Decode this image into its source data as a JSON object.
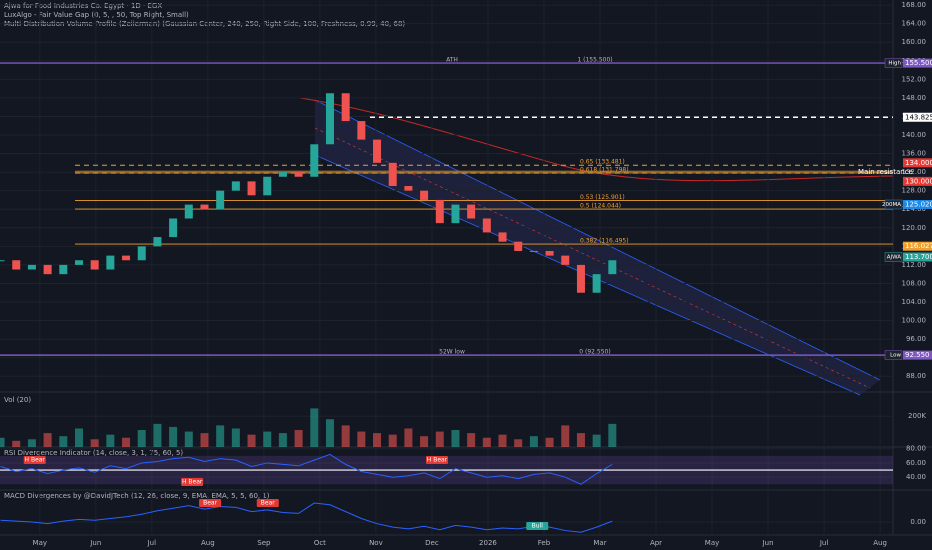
{
  "chart_data": [
    {
      "type": "candlestick",
      "title": "Ajwa for Food Industries Co. Egypt · 1D · EGX",
      "subtitles": [
        "LuxAlgo - Fair Value Gap (0, 5, , 50, Top Right, Small)",
        "Multi-Distribution Volume Profile (Zeiierman) (Gaussian Center, 240, 250, Right Side, 100, Freshness, 0.99, 40, 68)"
      ],
      "x": [
        0.3,
        0.58,
        0.86,
        1.14,
        1.42,
        1.7,
        1.98,
        2.26,
        2.54,
        2.82,
        3.1,
        3.38,
        3.66,
        3.94,
        4.22,
        4.5,
        4.78,
        5.06,
        5.34,
        5.62,
        5.9,
        6.18,
        6.46,
        6.74,
        7.02,
        7.3,
        7.58,
        7.86,
        8.14,
        8.42,
        8.7,
        8.98,
        9.26,
        9.54,
        9.82,
        10.1,
        10.38,
        10.66,
        10.94,
        11.22
      ],
      "close": [
        113,
        111,
        112,
        110,
        112,
        113,
        111,
        114,
        113,
        116,
        118,
        122,
        125,
        124,
        128,
        130,
        127,
        131,
        132,
        131,
        138,
        149,
        143,
        139,
        134,
        129,
        128,
        126,
        121,
        125,
        122,
        119,
        117,
        115,
        115,
        114,
        112,
        106,
        110,
        113
      ],
      "color_up": "#26a69a",
      "color_down": "#ef5350",
      "xlim": [
        0.29,
        16.23
      ],
      "xticks": [
        {
          "value": 1,
          "label": "May"
        },
        {
          "value": 2,
          "label": "Jun"
        },
        {
          "value": 3,
          "label": "Jul"
        },
        {
          "value": 4,
          "label": "Aug"
        },
        {
          "value": 5,
          "label": "Sep"
        },
        {
          "value": 6,
          "label": "Oct"
        },
        {
          "value": 7,
          "label": "Nov"
        },
        {
          "value": 8,
          "label": "Dec"
        },
        {
          "value": 9,
          "label": "2026"
        },
        {
          "value": 10,
          "label": "Feb"
        },
        {
          "value": 11,
          "label": "Mar"
        },
        {
          "value": 12,
          "label": "Apr"
        },
        {
          "value": 13,
          "label": "May"
        },
        {
          "value": 14,
          "label": "Jun"
        },
        {
          "value": 15,
          "label": "Jul"
        },
        {
          "value": 16,
          "label": "Aug"
        }
      ],
      "ylim": [
        84.6,
        169.1
      ],
      "yticks": [
        {
          "value": 88,
          "label": "88.00"
        },
        {
          "value": 92,
          "label": "92.00"
        },
        {
          "value": 96,
          "label": "96.00"
        },
        {
          "value": 100,
          "label": "100.00"
        },
        {
          "value": 104,
          "label": "104.00"
        },
        {
          "value": 108,
          "label": "108.00"
        },
        {
          "value": 112,
          "label": "112.00"
        },
        {
          "value": 116,
          "label": "116.00"
        },
        {
          "value": 120,
          "label": "120.00"
        },
        {
          "value": 124,
          "label": "124.00"
        },
        {
          "value": 128,
          "label": "128.00"
        },
        {
          "value": 132,
          "label": "132.00"
        },
        {
          "value": 136,
          "label": "136.00"
        },
        {
          "value": 140,
          "label": "140.00"
        },
        {
          "value": 144,
          "label": "144.00"
        },
        {
          "value": 148,
          "label": "148.00"
        },
        {
          "value": 152,
          "label": "152.00"
        },
        {
          "value": 156,
          "label": "156.00"
        },
        {
          "value": 160,
          "label": "160.00"
        },
        {
          "value": 164,
          "label": "164.00"
        },
        {
          "value": 168,
          "label": "168.00"
        }
      ],
      "levels": [
        {
          "value": 155.5,
          "color": "#7e57c2",
          "dash": false,
          "labels": [
            "ATH",
            "1 (155.500)"
          ]
        },
        {
          "value": 92.55,
          "color": "#7e57c2",
          "dash": false,
          "labels": [
            "52W low",
            "0 (92.550)"
          ]
        },
        {
          "value": 143.825,
          "color": "#ffffff",
          "dash": true,
          "labels": []
        },
        {
          "value": 133.481,
          "color": "#f0a030",
          "dash": true,
          "labels": [
            "0.65 (133.481)"
          ]
        },
        {
          "value": 131.798,
          "color": "#f0a030",
          "dash": true,
          "labels": [
            "0.618 (131.798)"
          ]
        },
        {
          "value": 125.901,
          "color": "#f0a030",
          "dash": false,
          "labels": [
            "0.53 (125.901)"
          ]
        },
        {
          "value": 124.044,
          "color": "#f0a030",
          "dash": false,
          "labels": [
            "0.5 (124.044)"
          ]
        },
        {
          "value": 116.495,
          "color": "#f0a030",
          "dash": false,
          "labels": [
            "0.382 (116.495)"
          ]
        }
      ],
      "price_tags": [
        {
          "value": 155.5,
          "label": "155.500",
          "color": "#7e57c2",
          "side": "High"
        },
        {
          "value": 143.825,
          "label": "143.825",
          "color": "#ffffff"
        },
        {
          "value": 134,
          "label": "134.000",
          "color": "#e53935"
        },
        {
          "value": 130,
          "label": "130.000",
          "color": "#e53935"
        },
        {
          "value": 125.02,
          "label": "125.020",
          "color": "#1e88e5",
          "side": "200MA"
        },
        {
          "value": 116.027,
          "label": "116.027",
          "color": "#f0a030"
        },
        {
          "value": 113.7,
          "label": "113.700",
          "color": "#26a69a",
          "side": "AJWA"
        },
        {
          "value": 92.55,
          "label": "92.550",
          "color": "#7e57c2",
          "side": "Low"
        }
      ],
      "notes": [
        {
          "text": "Main resistance",
          "value": 132
        }
      ]
    },
    {
      "type": "bar",
      "title": "Vol (20)",
      "values": [
        60000,
        40000,
        50000,
        90000,
        70000,
        120000,
        50000,
        80000,
        60000,
        110000,
        150000,
        130000,
        100000,
        90000,
        140000,
        120000,
        80000,
        100000,
        90000,
        110000,
        250000,
        180000,
        140000,
        100000,
        90000,
        80000,
        120000,
        70000,
        100000,
        110000,
        90000,
        60000,
        80000,
        50000,
        70000,
        60000,
        140000,
        90000,
        80000,
        150000
      ],
      "ylim": [
        0,
        350000
      ],
      "yticks": [
        {
          "value": 200000,
          "label": "200K"
        }
      ]
    },
    {
      "type": "line",
      "title": "RSI Divergence Indicator (14, close, 3, 1, 75, 60, 5)",
      "values": [
        55,
        48,
        52,
        45,
        50,
        53,
        47,
        56,
        52,
        60,
        62,
        66,
        68,
        62,
        66,
        64,
        55,
        60,
        58,
        56,
        64,
        72,
        58,
        48,
        44,
        40,
        42,
        46,
        38,
        52,
        46,
        40,
        42,
        38,
        44,
        46,
        40,
        30,
        45,
        58
      ],
      "color": "#2962ff",
      "ylim": [
        22,
        81
      ],
      "band": [
        30,
        70
      ],
      "midline": 50,
      "yticks": [
        {
          "value": 80,
          "label": "80.00"
        },
        {
          "value": 60,
          "label": "60.00"
        },
        {
          "value": 40,
          "label": "40.00"
        }
      ],
      "signals": [
        {
          "label": "H Bear",
          "x": 0.91,
          "color": "#e53935",
          "position": "above"
        },
        {
          "label": "H Bear",
          "x": 3.72,
          "color": "#e53935",
          "position": "below"
        },
        {
          "label": "H Bear",
          "x": 8.09,
          "color": "#e53935",
          "position": "above"
        }
      ]
    },
    {
      "type": "line",
      "title": "MACD Divergences by @DavidJTech (12, 26, close, 9, EMA, EMA, 5, 5, 60, 1)",
      "values": [
        0.2,
        0.1,
        0.0,
        -0.2,
        0.1,
        0.3,
        0.2,
        0.4,
        0.6,
        0.9,
        1.3,
        1.6,
        1.9,
        1.5,
        1.8,
        1.7,
        1.2,
        1.4,
        1.1,
        1.0,
        2.2,
        2.0,
        1.2,
        0.4,
        -0.2,
        -0.6,
        -0.8,
        -0.5,
        -0.9,
        -0.4,
        -0.6,
        -0.9,
        -0.7,
        -0.8,
        -0.5,
        -0.6,
        -1.0,
        -1.2,
        -0.6,
        0.1
      ],
      "color": "#2962ff",
      "ylim": [
        -1.4,
        3.6
      ],
      "yticks": [
        {
          "value": 0,
          "label": "0.00"
        }
      ],
      "signals": [
        {
          "label": "Bear",
          "x": 4.04,
          "color": "#e53935",
          "position": "above"
        },
        {
          "label": "Bear",
          "x": 5.07,
          "color": "#e53935",
          "position": "above"
        },
        {
          "label": "Bull",
          "x": 9.88,
          "color": "#26a69a",
          "position": "below"
        }
      ]
    }
  ]
}
